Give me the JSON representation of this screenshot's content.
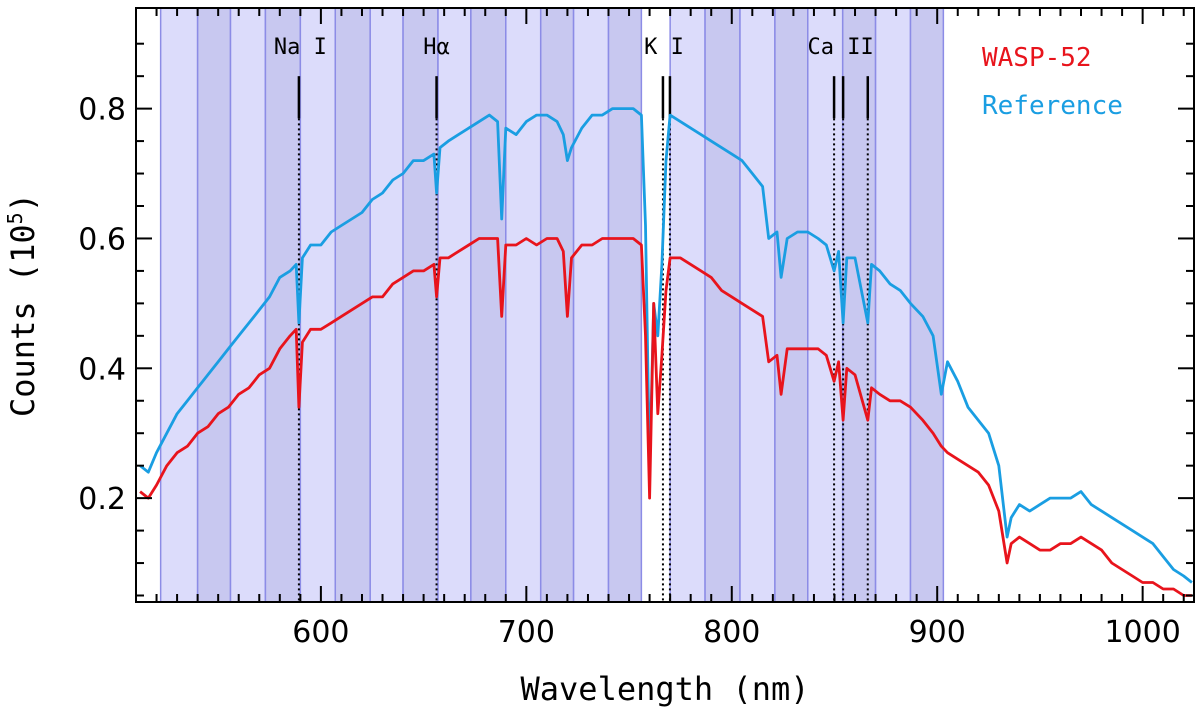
{
  "chart_data": {
    "type": "line",
    "xlabel": "Wavelength (nm)",
    "ylabel": "Counts (10",
    "ylabel_sup": "5",
    "ylabel_close": ")",
    "xlim": [
      510,
      1025
    ],
    "ylim": [
      0.04,
      0.955
    ],
    "x_ticks": [
      600,
      700,
      800,
      900,
      1000
    ],
    "x_tick_labels": [
      "600",
      "700",
      "800",
      "900",
      "1000"
    ],
    "y_ticks": [
      0.2,
      0.4,
      0.6,
      0.8
    ],
    "y_tick_labels": [
      "0.2",
      "0.4",
      "0.6",
      "0.8"
    ],
    "bins": [
      [
        522,
        540
      ],
      [
        540,
        556
      ],
      [
        556,
        573
      ],
      [
        573,
        590
      ],
      [
        590,
        607
      ],
      [
        607,
        624
      ],
      [
        624,
        640
      ],
      [
        640,
        657
      ],
      [
        657,
        673
      ],
      [
        673,
        690
      ],
      [
        690,
        707
      ],
      [
        707,
        723
      ],
      [
        723,
        740
      ],
      [
        740,
        756
      ],
      [
        770,
        787
      ],
      [
        787,
        804
      ],
      [
        804,
        821
      ],
      [
        821,
        837
      ],
      [
        837,
        854
      ],
      [
        854,
        870
      ],
      [
        870,
        887
      ],
      [
        887,
        903
      ]
    ],
    "bin_colors": [
      "#dcdcfb",
      "#c8c8f0"
    ],
    "spectral_lines": [
      {
        "label": "Na I",
        "label_x": 590,
        "waves": [
          589.3
        ]
      },
      {
        "label": "Hα",
        "label_x": 656.3,
        "waves": [
          656.3
        ]
      },
      {
        "label": "K I",
        "label_x": 767,
        "waves": [
          766.5,
          769.9
        ]
      },
      {
        "label": "Ca II",
        "label_x": 853,
        "waves": [
          849.8,
          854.2,
          866.2
        ]
      }
    ],
    "series": [
      {
        "name": "WASP-52",
        "color": "#e8141c",
        "x": [
          512,
          516,
          520,
          525,
          530,
          535,
          540,
          545,
          550,
          555,
          560,
          565,
          570,
          575,
          580,
          585,
          588,
          589.3,
          591,
          595,
          600,
          605,
          610,
          615,
          620,
          625,
          630,
          635,
          640,
          645,
          650,
          655,
          656.3,
          658,
          662,
          667,
          672,
          677,
          682,
          686,
          688,
          690,
          695,
          700,
          705,
          710,
          715,
          718,
          720,
          722,
          727,
          732,
          737,
          742,
          747,
          752,
          756,
          758,
          760,
          762,
          764,
          766,
          768,
          770,
          775,
          780,
          785,
          790,
          795,
          800,
          805,
          810,
          815,
          818,
          822,
          824,
          827,
          832,
          837,
          842,
          846,
          849.8,
          852,
          854.2,
          856,
          860,
          866.2,
          868,
          872,
          877,
          882,
          887,
          893,
          898,
          902,
          905,
          910,
          915,
          920,
          925,
          930,
          934,
          936,
          940,
          945,
          950,
          955,
          960,
          965,
          970,
          975,
          980,
          985,
          990,
          995,
          1000,
          1005,
          1010,
          1015,
          1020,
          1024
        ],
        "values": [
          0.21,
          0.2,
          0.22,
          0.25,
          0.27,
          0.28,
          0.3,
          0.31,
          0.33,
          0.34,
          0.36,
          0.37,
          0.39,
          0.4,
          0.43,
          0.45,
          0.46,
          0.34,
          0.44,
          0.46,
          0.46,
          0.47,
          0.48,
          0.49,
          0.5,
          0.51,
          0.51,
          0.53,
          0.54,
          0.55,
          0.55,
          0.56,
          0.51,
          0.57,
          0.57,
          0.58,
          0.59,
          0.6,
          0.6,
          0.6,
          0.48,
          0.59,
          0.59,
          0.6,
          0.59,
          0.6,
          0.6,
          0.58,
          0.48,
          0.57,
          0.59,
          0.59,
          0.6,
          0.6,
          0.6,
          0.6,
          0.59,
          0.45,
          0.2,
          0.5,
          0.33,
          0.42,
          0.52,
          0.57,
          0.57,
          0.56,
          0.55,
          0.54,
          0.52,
          0.51,
          0.5,
          0.49,
          0.48,
          0.41,
          0.42,
          0.36,
          0.43,
          0.43,
          0.43,
          0.43,
          0.42,
          0.38,
          0.41,
          0.32,
          0.4,
          0.39,
          0.32,
          0.37,
          0.36,
          0.35,
          0.35,
          0.34,
          0.32,
          0.3,
          0.28,
          0.27,
          0.26,
          0.25,
          0.24,
          0.22,
          0.18,
          0.1,
          0.13,
          0.14,
          0.13,
          0.12,
          0.12,
          0.13,
          0.13,
          0.14,
          0.13,
          0.12,
          0.1,
          0.09,
          0.08,
          0.07,
          0.07,
          0.06,
          0.06,
          0.05,
          0.05
        ]
      },
      {
        "name": "Reference",
        "color": "#1a9ee2",
        "x": [
          512,
          516,
          520,
          525,
          530,
          535,
          540,
          545,
          550,
          555,
          560,
          565,
          570,
          575,
          580,
          585,
          588,
          589.3,
          591,
          595,
          600,
          605,
          610,
          615,
          620,
          625,
          630,
          635,
          640,
          645,
          650,
          655,
          656.3,
          658,
          662,
          667,
          672,
          677,
          682,
          686,
          688,
          690,
          695,
          700,
          705,
          710,
          715,
          718,
          720,
          722,
          727,
          732,
          737,
          742,
          747,
          752,
          756,
          758,
          760,
          762,
          764,
          766,
          768,
          770,
          775,
          780,
          785,
          790,
          795,
          800,
          805,
          810,
          815,
          818,
          822,
          824,
          827,
          832,
          837,
          842,
          846,
          849.8,
          852,
          854.2,
          856,
          860,
          866.2,
          868,
          872,
          877,
          882,
          887,
          893,
          898,
          902,
          905,
          910,
          915,
          920,
          925,
          930,
          934,
          936,
          940,
          945,
          950,
          955,
          960,
          965,
          970,
          975,
          980,
          985,
          990,
          995,
          1000,
          1005,
          1010,
          1015,
          1020,
          1024
        ],
        "values": [
          0.25,
          0.24,
          0.27,
          0.3,
          0.33,
          0.35,
          0.37,
          0.39,
          0.41,
          0.43,
          0.45,
          0.47,
          0.49,
          0.51,
          0.54,
          0.55,
          0.56,
          0.47,
          0.57,
          0.59,
          0.59,
          0.61,
          0.62,
          0.63,
          0.64,
          0.66,
          0.67,
          0.69,
          0.7,
          0.72,
          0.72,
          0.73,
          0.67,
          0.74,
          0.75,
          0.76,
          0.77,
          0.78,
          0.79,
          0.78,
          0.63,
          0.77,
          0.76,
          0.78,
          0.79,
          0.79,
          0.78,
          0.76,
          0.72,
          0.74,
          0.77,
          0.79,
          0.79,
          0.8,
          0.8,
          0.8,
          0.79,
          0.62,
          0.24,
          0.5,
          0.45,
          0.56,
          0.72,
          0.79,
          0.78,
          0.77,
          0.76,
          0.75,
          0.74,
          0.73,
          0.72,
          0.7,
          0.68,
          0.6,
          0.61,
          0.54,
          0.6,
          0.61,
          0.61,
          0.6,
          0.59,
          0.55,
          0.58,
          0.47,
          0.57,
          0.57,
          0.47,
          0.56,
          0.55,
          0.53,
          0.52,
          0.5,
          0.48,
          0.45,
          0.36,
          0.41,
          0.38,
          0.34,
          0.32,
          0.3,
          0.25,
          0.14,
          0.17,
          0.19,
          0.18,
          0.19,
          0.2,
          0.2,
          0.2,
          0.21,
          0.19,
          0.18,
          0.17,
          0.16,
          0.15,
          0.14,
          0.13,
          0.11,
          0.09,
          0.08,
          0.07
        ]
      }
    ]
  }
}
